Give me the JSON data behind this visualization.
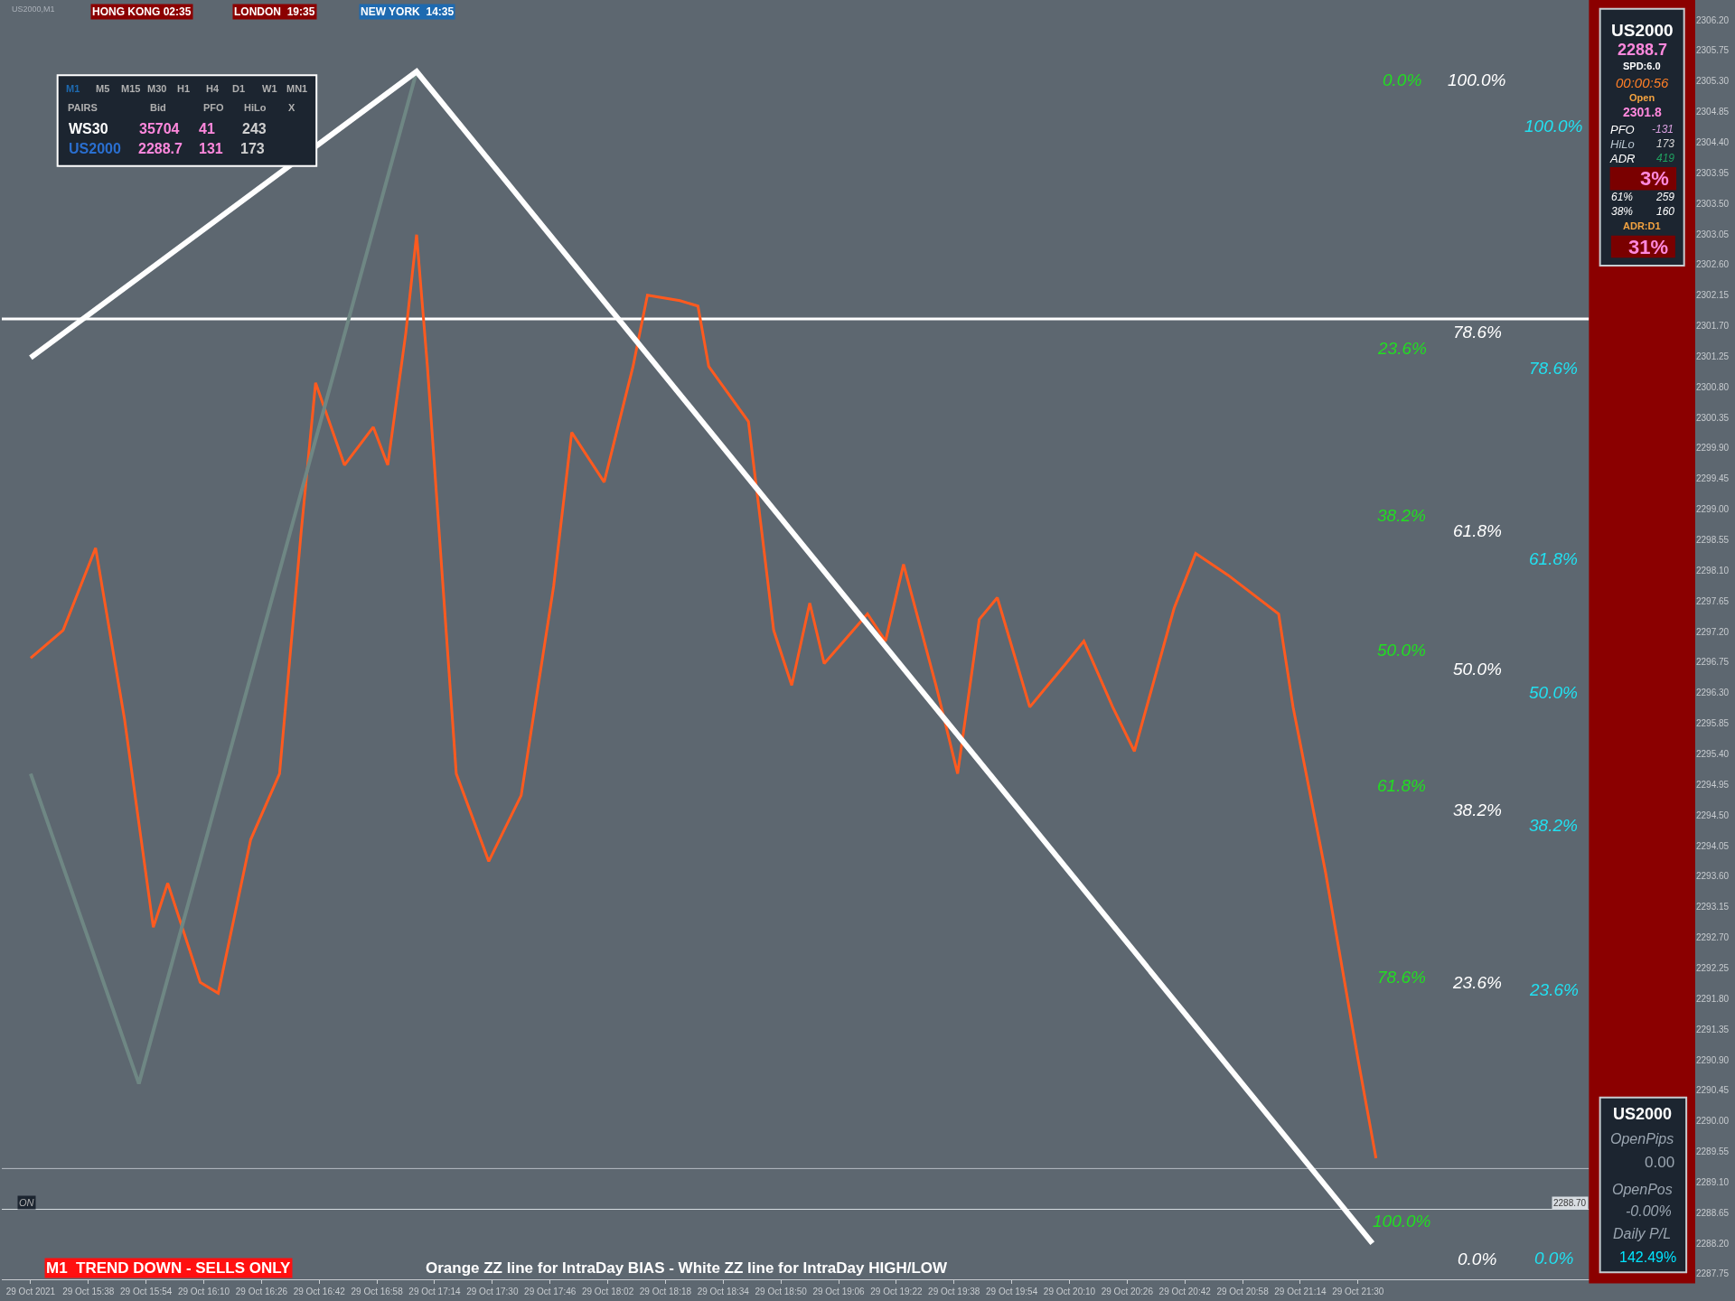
{
  "chart_data": {
    "type": "line",
    "xlim": [
      "2021-10-29T15:14",
      "2021-10-29T23:02"
    ],
    "ylim": [
      2287.67,
      2306.44
    ],
    "xticks": [
      {
        "value": "2021-10-29T15:22",
        "label": "29 Oct 2021"
      },
      {
        "value": "2021-10-29T15:38",
        "label": "29 Oct 15:38"
      },
      {
        "value": "2021-10-29T15:54",
        "label": "29 Oct 15:54"
      },
      {
        "value": "2021-10-29T16:10",
        "label": "29 Oct 16:10"
      },
      {
        "value": "2021-10-29T16:26",
        "label": "29 Oct 16:26"
      },
      {
        "value": "2021-10-29T16:42",
        "label": "29 Oct 16:42"
      },
      {
        "value": "2021-10-29T16:58",
        "label": "29 Oct 16:58"
      },
      {
        "value": "2021-10-29T17:14",
        "label": "29 Oct 17:14"
      },
      {
        "value": "2021-10-29T17:30",
        "label": "29 Oct 17:30"
      },
      {
        "value": "2021-10-29T17:46",
        "label": "29 Oct 17:46"
      },
      {
        "value": "2021-10-29T18:02",
        "label": "29 Oct 18:02"
      },
      {
        "value": "2021-10-29T18:18",
        "label": "29 Oct 18:18"
      },
      {
        "value": "2021-10-29T18:34",
        "label": "29 Oct 18:34"
      },
      {
        "value": "2021-10-29T18:50",
        "label": "29 Oct 18:50"
      },
      {
        "value": "2021-10-29T19:06",
        "label": "29 Oct 19:06"
      },
      {
        "value": "2021-10-29T19:22",
        "label": "29 Oct 19:22"
      },
      {
        "value": "2021-10-29T19:38",
        "label": "29 Oct 19:38"
      },
      {
        "value": "2021-10-29T19:54",
        "label": "29 Oct 19:54"
      },
      {
        "value": "2021-10-29T20:10",
        "label": "29 Oct 20:10"
      },
      {
        "value": "2021-10-29T20:26",
        "label": "29 Oct 20:26"
      },
      {
        "value": "2021-10-29T20:42",
        "label": "29 Oct 20:42"
      },
      {
        "value": "2021-10-29T20:58",
        "label": "29 Oct 20:58"
      },
      {
        "value": "2021-10-29T21:14",
        "label": "29 Oct 21:14"
      },
      {
        "value": "2021-10-29T21:30",
        "label": "29 Oct 21:30"
      }
    ],
    "yticks": [
      {
        "value": 2306.2,
        "label": "2306.20"
      },
      {
        "value": 2305.75,
        "label": "2305.75"
      },
      {
        "value": 2305.3,
        "label": "2305.30"
      },
      {
        "value": 2304.85,
        "label": "2304.85"
      },
      {
        "value": 2304.4,
        "label": "2304.40"
      },
      {
        "value": 2303.95,
        "label": "2303.95"
      },
      {
        "value": 2303.5,
        "label": "2303.50"
      },
      {
        "value": 2303.05,
        "label": "2303.05"
      },
      {
        "value": 2302.6,
        "label": "2302.60"
      },
      {
        "value": 2302.15,
        "label": "2302.15"
      },
      {
        "value": 2301.7,
        "label": "2301.70"
      },
      {
        "value": 2301.25,
        "label": "2301.25"
      },
      {
        "value": 2300.8,
        "label": "2300.80"
      },
      {
        "value": 2300.35,
        "label": "2300.35"
      },
      {
        "value": 2299.9,
        "label": "2299.90"
      },
      {
        "value": 2299.45,
        "label": "2299.45"
      },
      {
        "value": 2299.0,
        "label": "2299.00"
      },
      {
        "value": 2298.55,
        "label": "2298.55"
      },
      {
        "value": 2298.1,
        "label": "2298.10"
      },
      {
        "value": 2297.65,
        "label": "2297.65"
      },
      {
        "value": 2297.2,
        "label": "2297.20"
      },
      {
        "value": 2296.75,
        "label": "2296.75"
      },
      {
        "value": 2296.3,
        "label": "2296.30"
      },
      {
        "value": 2295.85,
        "label": "2295.85"
      },
      {
        "value": 2295.4,
        "label": "2295.40"
      },
      {
        "value": 2294.95,
        "label": "2294.95"
      },
      {
        "value": 2294.5,
        "label": "2294.50"
      },
      {
        "value": 2294.05,
        "label": "2294.05"
      },
      {
        "value": 2293.6,
        "label": "2293.60"
      },
      {
        "value": 2293.15,
        "label": "2293.15"
      },
      {
        "value": 2292.7,
        "label": "2292.70"
      },
      {
        "value": 2292.25,
        "label": "2292.25"
      },
      {
        "value": 2291.8,
        "label": "2291.80"
      },
      {
        "value": 2291.35,
        "label": "2291.35"
      },
      {
        "value": 2290.9,
        "label": "2290.90"
      },
      {
        "value": 2290.45,
        "label": "2290.45"
      },
      {
        "value": 2290.0,
        "label": "2290.00"
      },
      {
        "value": 2289.55,
        "label": "2289.55"
      },
      {
        "value": 2289.1,
        "label": "2289.10"
      },
      {
        "value": 2288.65,
        "label": "2288.65"
      },
      {
        "value": 2288.2,
        "label": "2288.20"
      },
      {
        "value": 2287.75,
        "label": "2287.75"
      }
    ],
    "series": [
      {
        "color": "#ff5a1f",
        "x": [
          "2021-10-29T15:22",
          "2021-10-29T15:31",
          "2021-10-29T15:40",
          "2021-10-29T15:48",
          "2021-10-29T15:56",
          "2021-10-29T16:00",
          "2021-10-29T16:09",
          "2021-10-29T16:14",
          "2021-10-29T16:23",
          "2021-10-29T16:31",
          "2021-10-29T16:37",
          "2021-10-29T16:41",
          "2021-10-29T16:49",
          "2021-10-29T16:57",
          "2021-10-29T17:01",
          "2021-10-29T17:06",
          "2021-10-29T17:09",
          "2021-10-29T17:12",
          "2021-10-29T17:20",
          "2021-10-29T17:29",
          "2021-10-29T17:38",
          "2021-10-29T17:47",
          "2021-10-29T17:52",
          "2021-10-29T18:01",
          "2021-10-29T18:09",
          "2021-10-29T18:13",
          "2021-10-29T18:22",
          "2021-10-29T18:27",
          "2021-10-29T18:30",
          "2021-10-29T18:41",
          "2021-10-29T18:48",
          "2021-10-29T18:53",
          "2021-10-29T18:58",
          "2021-10-29T19:02",
          "2021-10-29T19:14",
          "2021-10-29T19:19",
          "2021-10-29T19:24",
          "2021-10-29T19:33",
          "2021-10-29T19:39",
          "2021-10-29T19:45",
          "2021-10-29T19:50",
          "2021-10-29T19:59",
          "2021-10-29T20:09",
          "2021-10-29T20:14",
          "2021-10-29T20:22",
          "2021-10-29T20:28",
          "2021-10-29T20:39",
          "2021-10-29T20:45",
          "2021-10-29T20:54",
          "2021-10-29T21:08",
          "2021-10-29T21:12",
          "2021-10-29T21:21",
          "2021-10-29T21:30",
          "2021-10-29T21:35"
        ],
        "values": [
          2296.81,
          2297.22,
          2298.43,
          2295.92,
          2292.85,
          2293.5,
          2292.04,
          2291.88,
          2294.14,
          2295.11,
          2298.67,
          2300.86,
          2299.65,
          2300.21,
          2299.65,
          2301.59,
          2303.04,
          2301.1,
          2295.11,
          2293.82,
          2294.79,
          2297.87,
          2300.13,
          2299.4,
          2301.1,
          2302.15,
          2302.07,
          2301.99,
          2301.1,
          2300.29,
          2297.22,
          2296.41,
          2297.62,
          2296.73,
          2297.46,
          2297.06,
          2298.19,
          2296.41,
          2295.11,
          2297.38,
          2297.7,
          2296.09,
          2296.73,
          2297.06,
          2296.09,
          2295.44,
          2297.54,
          2298.35,
          2298.03,
          2297.46,
          2296.09,
          2293.66,
          2290.91,
          2289.45
        ]
      },
      {
        "color": "#6f8784",
        "x": [
          "2021-10-29T15:22",
          "2021-10-29T15:52",
          "2021-10-29T17:09"
        ],
        "values": [
          2295.11,
          2290.55,
          2305.44
        ]
      },
      {
        "color": "#ffffff",
        "x": [
          "2021-10-29T15:22",
          "2021-10-29T17:09",
          "2021-10-29T21:34"
        ],
        "values": [
          2301.23,
          2305.44,
          2288.2
        ]
      }
    ],
    "ref_lines": [
      {
        "axis": "y",
        "value": 2301.8,
        "color": "#ffffff"
      },
      {
        "axis": "y",
        "value": 2289.3,
        "color": "#b8bec4"
      },
      {
        "axis": "y",
        "value": 2288.7,
        "label": "2288.70",
        "color": "#d8dde2"
      }
    ],
    "annotations": [
      "US2000,M1",
      "HONG KONG 02:35",
      "LONDON  19:35",
      "NEW YORK  14:35",
      "M1",
      "M5",
      "M15",
      "M30",
      "H1",
      "H4",
      "D1",
      "W1",
      "MN1",
      "PAIRS",
      "Bid",
      "PFO",
      "HiLo",
      "X",
      "WS30",
      "35704",
      "41",
      "243",
      "US2000",
      "2288.7",
      "131",
      "173",
      "US2000",
      "2288.7",
      "SPD:6.0",
      "00:00:56",
      "Open",
      "2301.8",
      "PFO",
      "-131",
      "HiLo",
      "173",
      "ADR",
      "419",
      "3%",
      "61%",
      "259",
      "38%",
      "160",
      "ADR:D1",
      "31%",
      "US2000",
      "OpenPips",
      "0.00",
      "OpenPos",
      "-0.00%",
      "Daily P/L",
      "142.49%",
      "ON",
      "M1  TREND DOWN - SELLS ONLY",
      "Orange ZZ line for IntraDay BIAS - White ZZ line for IntraDay HIGH/LOW",
      "0.0%",
      "23.6%",
      "38.2%",
      "50.0%",
      "61.8%",
      "78.6%",
      "100.0%",
      "100.0%",
      "78.6%",
      "61.8%",
      "50.0%",
      "38.2%",
      "23.6%",
      "0.0%",
      "100.0%",
      "78.6%",
      "61.8%",
      "50.0%",
      "38.2%",
      "23.6%",
      "0.0%"
    ]
  }
}
